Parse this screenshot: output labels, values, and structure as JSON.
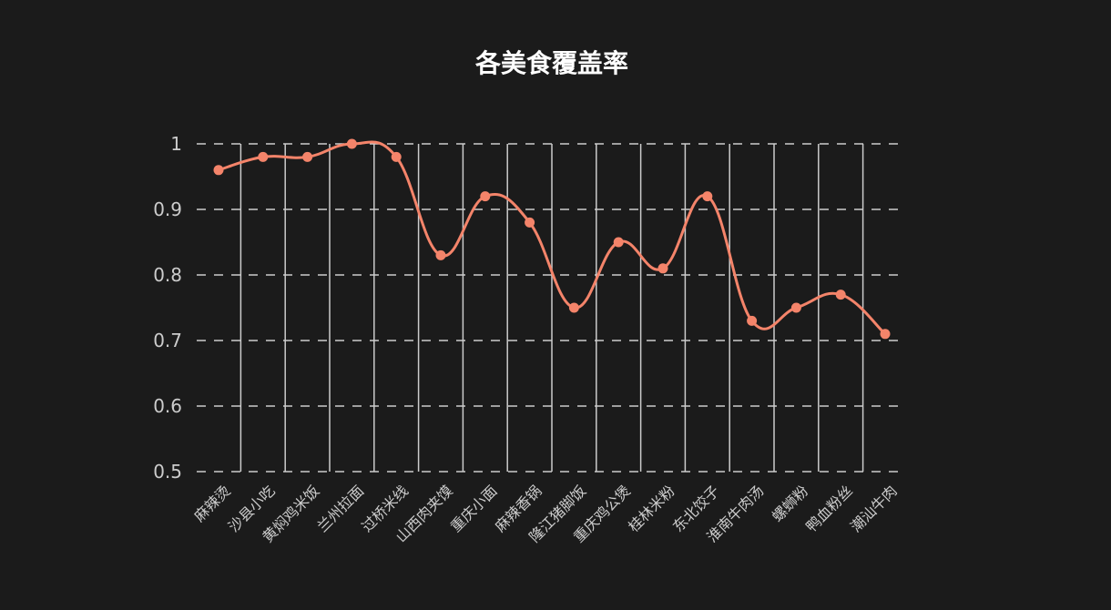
{
  "chart_data": {
    "type": "line",
    "title": "各美食覆盖率",
    "xlabel": "",
    "ylabel": "",
    "categories": [
      "麻辣烫",
      "沙县小吃",
      "黄焖鸡米饭",
      "兰州拉面",
      "过桥米线",
      "山西肉夹馍",
      "重庆小面",
      "麻辣香锅",
      "隆江猪脚饭",
      "重庆鸡公煲",
      "桂林米粉",
      "东北饺子",
      "淮南牛肉汤",
      "螺蛳粉",
      "鸭血粉丝",
      "潮汕牛肉"
    ],
    "series": [
      {
        "values": [
          0.96,
          0.98,
          0.98,
          1.0,
          0.98,
          0.83,
          0.92,
          0.88,
          0.75,
          0.85,
          0.81,
          0.92,
          0.73,
          0.75,
          0.77,
          0.71
        ]
      }
    ],
    "ylim": [
      0.5,
      1
    ],
    "yticks": [
      "0.5",
      "0.6",
      "0.7",
      "0.8",
      "0.9",
      "1"
    ],
    "yticks_values": [
      0.5,
      0.6,
      0.7,
      0.8,
      0.9,
      1.0
    ],
    "smooth": true,
    "grid": true,
    "colors": {
      "background": "#1b1b1b",
      "line": "#f4846a",
      "grid": "#cccccc",
      "text": "#cccccc",
      "title": "#ffffff"
    }
  }
}
